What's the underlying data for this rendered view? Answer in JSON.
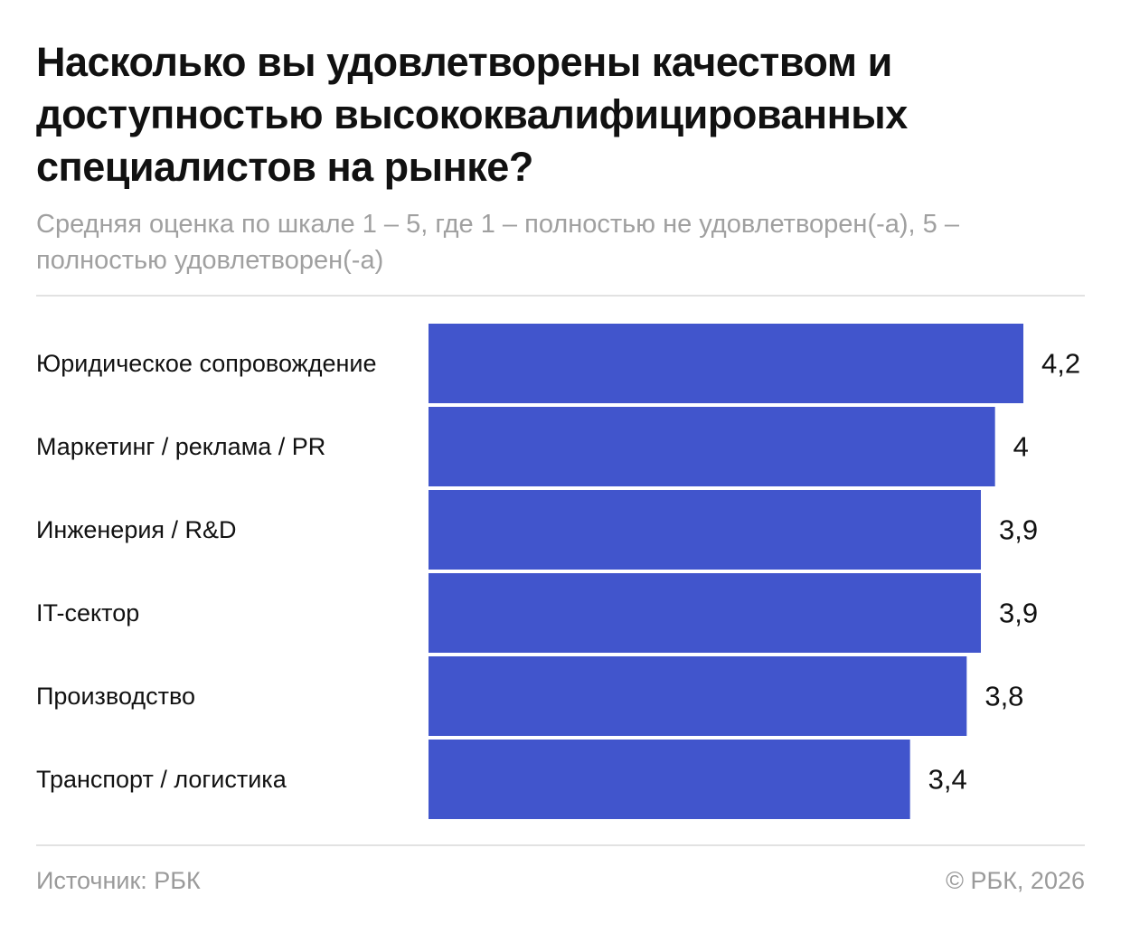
{
  "header": {
    "title": "Насколько вы удовлетворены качеством и доступностью высококвалифицированных специалистов на рынке?",
    "subtitle": "Средняя оценка по шкале 1 – 5, где 1 – полностью не удовлетворен(-а), 5 – полностью удовлетворен(-а)"
  },
  "footer": {
    "source": "Источник: РБК",
    "copyright": "© РБК, 2026"
  },
  "chart_data": {
    "type": "bar",
    "orientation": "horizontal",
    "bar_color": "#4155cc",
    "categories": [
      "Юридическое сопровождение",
      "Маркетинг / реклама / PR",
      "Инженерия / R&D",
      "IT-сектор",
      "Производство",
      "Транспорт / логистика"
    ],
    "values": [
      4.2,
      4,
      3.9,
      3.9,
      3.8,
      3.4
    ],
    "value_labels": [
      "4,2",
      "4",
      "3,9",
      "3,9",
      "3,8",
      "3,4"
    ],
    "xlim": [
      0,
      4.2
    ],
    "grid": false,
    "legend": "none"
  }
}
